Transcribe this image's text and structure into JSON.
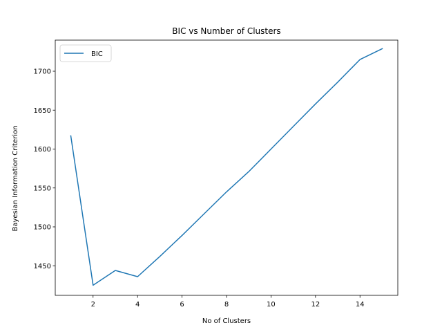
{
  "chart_data": {
    "type": "line",
    "title": "BIC vs Number of Clusters",
    "xlabel": "No of Clusters",
    "ylabel": "Bayesian Information Criterion",
    "xlim": [
      0.3,
      15.7
    ],
    "ylim": [
      1412,
      1740
    ],
    "xticks": [
      2,
      4,
      6,
      8,
      10,
      12,
      14
    ],
    "yticks": [
      1450,
      1500,
      1550,
      1600,
      1650,
      1700
    ],
    "grid": false,
    "legend": "top-left",
    "series": [
      {
        "name": "BIC",
        "color": "#1f77b4",
        "x": [
          1,
          2,
          3,
          4,
          5,
          6,
          7,
          8,
          9,
          10,
          11,
          12,
          13,
          14,
          15
        ],
        "y": [
          1617,
          1425,
          1444,
          1436,
          1462,
          1489,
          1517,
          1545,
          1571,
          1600,
          1629,
          1658,
          1686,
          1715,
          1729
        ]
      }
    ]
  }
}
